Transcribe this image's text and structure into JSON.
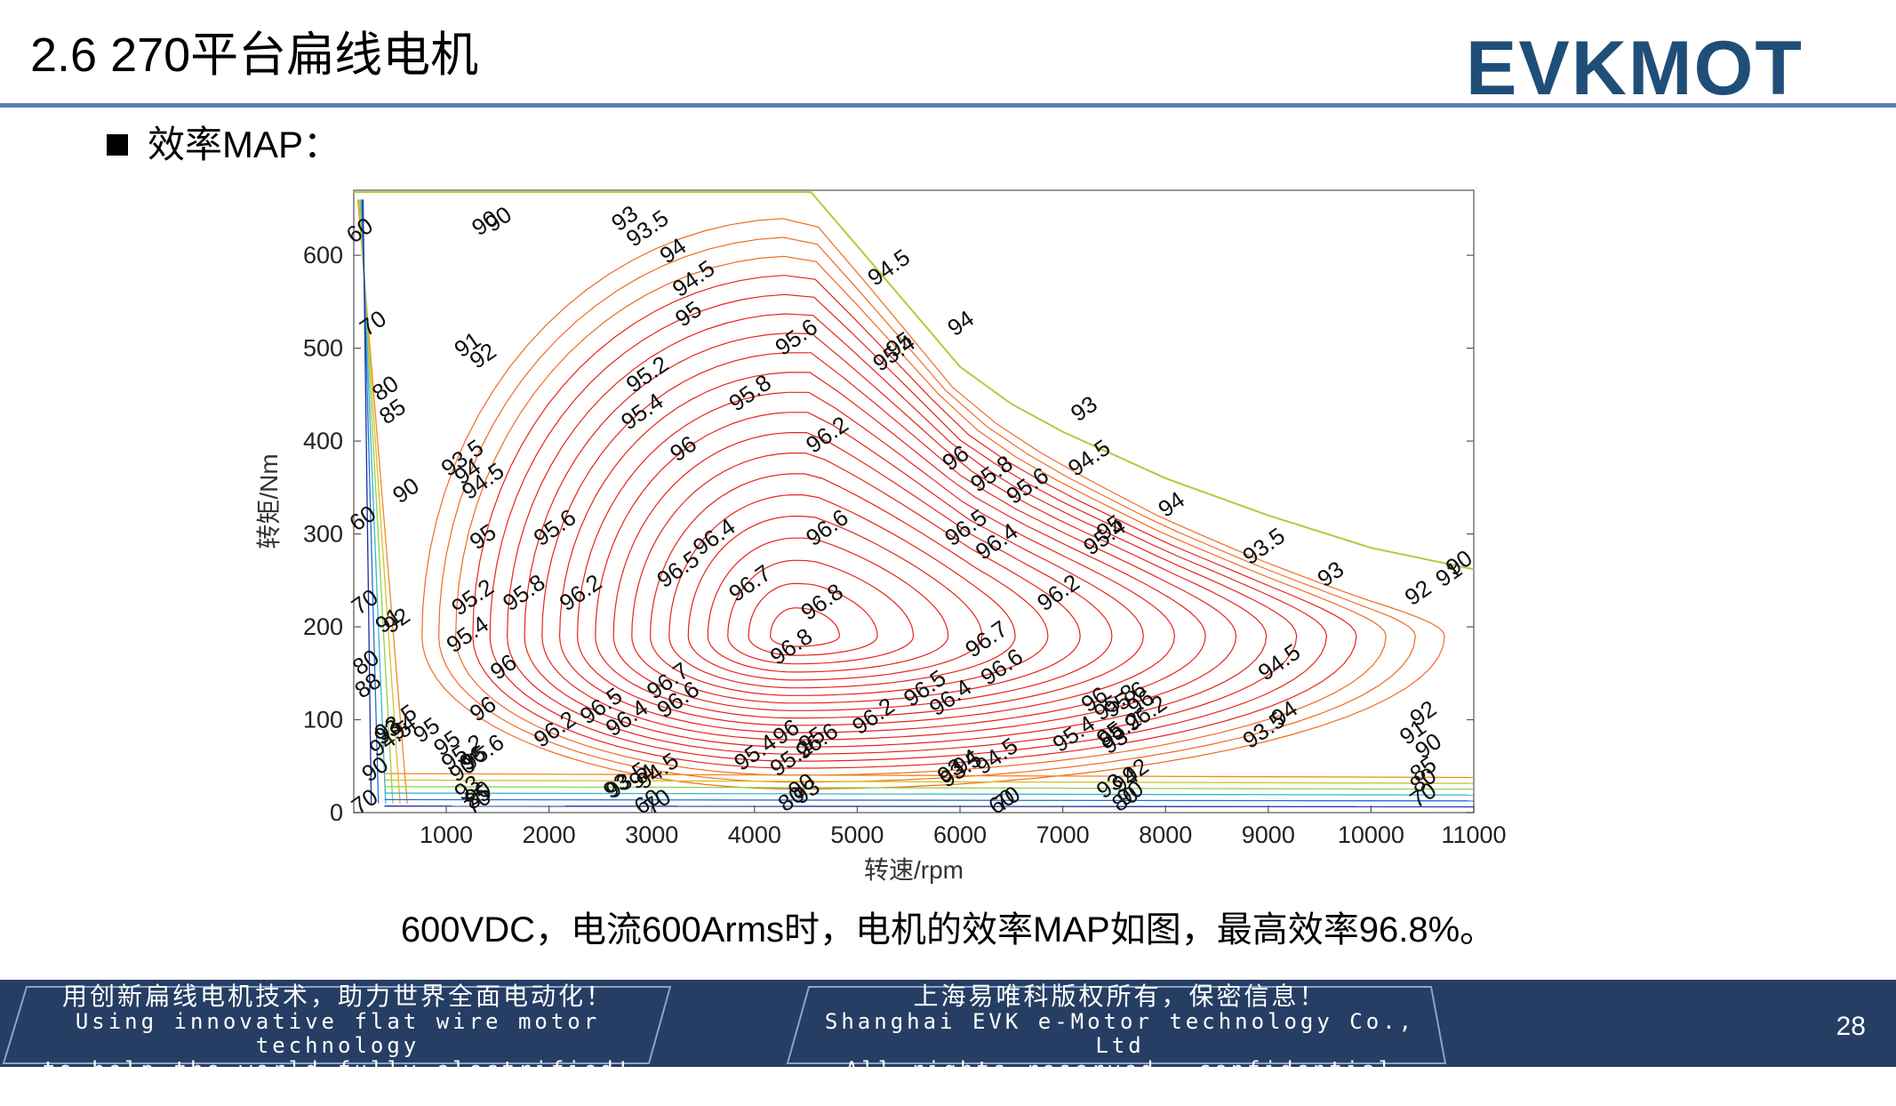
{
  "slide": {
    "title": "2.6 270平台扁线电机",
    "bullet": "效率MAP：",
    "caption": "600VDC，电流600Arms时，电机的效率MAP如图，最高效率96.8%。",
    "page_number": "28",
    "logo_text": "EVKMOT"
  },
  "footer": {
    "left_line1": "用创新扁线电机技术，助力世界全面电动化！",
    "left_line2": "Using innovative flat wire motor technology",
    "left_line3": "to help the world fully electrified!",
    "right_line1": "上海易唯科版权所有，保密信息！",
    "right_line2": "Shanghai EVK e-Motor technology Co., Ltd",
    "right_line3": "All rights reserved， confidential information!"
  },
  "colors": {
    "accent_rule": "#5b7fb3",
    "footer_bg": "#263e63",
    "logo_blue": "#1f4e79",
    "logo_green": "#2e8b57",
    "contour_high": "#e8231c",
    "contour_mid": "#f08a1e",
    "contour_low_green": "#8fd14f",
    "contour_low_blue": "#1f6fdc"
  },
  "chart_data": {
    "type": "contour",
    "xlabel": "转速/rpm",
    "ylabel": "转矩/Nm",
    "xlim": [
      100,
      11000
    ],
    "ylim": [
      0,
      670
    ],
    "x_ticks": [
      1000,
      2000,
      3000,
      4000,
      5000,
      6000,
      7000,
      8000,
      9000,
      10000,
      11000
    ],
    "y_ticks": [
      0,
      100,
      200,
      300,
      400,
      500,
      600
    ],
    "peak_efficiency": 96.8,
    "peak_location": {
      "speed_rpm": 4400,
      "torque_nm": 190
    },
    "envelope": [
      [
        100,
        668
      ],
      [
        4550,
        668
      ],
      [
        5000,
        610
      ],
      [
        5500,
        545
      ],
      [
        6000,
        480
      ],
      [
        6500,
        440
      ],
      [
        7000,
        410
      ],
      [
        8000,
        360
      ],
      [
        9000,
        320
      ],
      [
        10000,
        285
      ],
      [
        11000,
        262
      ]
    ],
    "contour_levels": [
      60,
      70,
      80,
      85,
      90,
      91,
      92,
      93,
      93.5,
      94,
      94.5,
      95,
      95.2,
      95.4,
      95.6,
      95.8,
      96,
      96.2,
      96.4,
      96.5,
      96.6,
      96.7,
      96.8
    ],
    "contour_labels": [
      {
        "text": "60",
        "x": 200,
        "y": 620
      },
      {
        "text": "70",
        "x": 330,
        "y": 520
      },
      {
        "text": "80",
        "x": 450,
        "y": 450
      },
      {
        "text": "85",
        "x": 520,
        "y": 425
      },
      {
        "text": "90",
        "x": 1420,
        "y": 628
      },
      {
        "text": "93",
        "x": 2780,
        "y": 633
      },
      {
        "text": "93.5",
        "x": 3000,
        "y": 622
      },
      {
        "text": "94",
        "x": 3250,
        "y": 598
      },
      {
        "text": "94.5",
        "x": 3450,
        "y": 568
      },
      {
        "text": "95",
        "x": 3400,
        "y": 530
      },
      {
        "text": "95.2",
        "x": 3000,
        "y": 465
      },
      {
        "text": "95.4",
        "x": 2950,
        "y": 425
      },
      {
        "text": "95.6",
        "x": 4450,
        "y": 505
      },
      {
        "text": "95.8",
        "x": 4000,
        "y": 445
      },
      {
        "text": "96",
        "x": 3350,
        "y": 385
      },
      {
        "text": "96.2",
        "x": 4750,
        "y": 400
      },
      {
        "text": "96.4",
        "x": 3650,
        "y": 290
      },
      {
        "text": "96.5",
        "x": 3300,
        "y": 255
      },
      {
        "text": "96.6",
        "x": 4750,
        "y": 300
      },
      {
        "text": "96.7",
        "x": 4000,
        "y": 240
      },
      {
        "text": "96.8",
        "x": 4700,
        "y": 220
      },
      {
        "text": "96.8",
        "x": 4400,
        "y": 172
      },
      {
        "text": "94.5",
        "x": 5350,
        "y": 580
      },
      {
        "text": "94",
        "x": 6050,
        "y": 520
      },
      {
        "text": "95",
        "x": 5450,
        "y": 497
      },
      {
        "text": "95.4",
        "x": 5400,
        "y": 488
      },
      {
        "text": "96",
        "x": 6000,
        "y": 375
      },
      {
        "text": "95.8",
        "x": 6350,
        "y": 358
      },
      {
        "text": "95.6",
        "x": 6700,
        "y": 345
      },
      {
        "text": "96.5",
        "x": 6100,
        "y": 300
      },
      {
        "text": "96.4",
        "x": 6400,
        "y": 285
      },
      {
        "text": "96.2",
        "x": 7000,
        "y": 230
      },
      {
        "text": "96.7",
        "x": 6300,
        "y": 180
      },
      {
        "text": "96.6",
        "x": 6450,
        "y": 150
      },
      {
        "text": "93",
        "x": 7250,
        "y": 428
      },
      {
        "text": "94.5",
        "x": 7300,
        "y": 375
      },
      {
        "text": "94",
        "x": 8100,
        "y": 325
      },
      {
        "text": "95",
        "x": 7500,
        "y": 300
      },
      {
        "text": "95.4",
        "x": 7450,
        "y": 290
      },
      {
        "text": "93.5",
        "x": 9000,
        "y": 280
      },
      {
        "text": "93",
        "x": 9650,
        "y": 250
      },
      {
        "text": "92",
        "x": 10500,
        "y": 230
      },
      {
        "text": "91",
        "x": 10800,
        "y": 250
      },
      {
        "text": "90",
        "x": 10900,
        "y": 262
      },
      {
        "text": "94.5",
        "x": 9150,
        "y": 155
      },
      {
        "text": "94",
        "x": 9200,
        "y": 100
      },
      {
        "text": "93.5",
        "x": 9000,
        "y": 82
      },
      {
        "text": "92",
        "x": 10550,
        "y": 100
      },
      {
        "text": "91",
        "x": 10450,
        "y": 80
      },
      {
        "text": "90",
        "x": 10600,
        "y": 65
      },
      {
        "text": "85",
        "x": 10550,
        "y": 40
      },
      {
        "text": "80",
        "x": 10550,
        "y": 28
      },
      {
        "text": "70",
        "x": 10550,
        "y": 12
      },
      {
        "text": "96.2",
        "x": 2100,
        "y": 83
      },
      {
        "text": "96.4",
        "x": 2800,
        "y": 95
      },
      {
        "text": "96.5",
        "x": 2550,
        "y": 108
      },
      {
        "text": "96.6",
        "x": 3300,
        "y": 115
      },
      {
        "text": "96.7",
        "x": 3200,
        "y": 135
      },
      {
        "text": "96.2",
        "x": 5200,
        "y": 97
      },
      {
        "text": "96.5",
        "x": 5700,
        "y": 127
      },
      {
        "text": "96.4",
        "x": 5950,
        "y": 117
      },
      {
        "text": "95.4",
        "x": 4050,
        "y": 58
      },
      {
        "text": "95.2",
        "x": 4400,
        "y": 52
      },
      {
        "text": "95",
        "x": 4600,
        "y": 72
      },
      {
        "text": "96",
        "x": 4350,
        "y": 80
      },
      {
        "text": "96.6",
        "x": 4650,
        "y": 70
      },
      {
        "text": "94.5",
        "x": 3100,
        "y": 38
      },
      {
        "text": "94",
        "x": 2950,
        "y": 32
      },
      {
        "text": "93.5",
        "x": 2800,
        "y": 28
      },
      {
        "text": "93",
        "x": 2700,
        "y": 22
      },
      {
        "text": "70",
        "x": 3100,
        "y": 5
      },
      {
        "text": "80",
        "x": 4400,
        "y": 8
      },
      {
        "text": "90",
        "x": 4500,
        "y": 22
      },
      {
        "text": "93",
        "x": 4550,
        "y": 16
      },
      {
        "text": "94.5",
        "x": 6400,
        "y": 54
      },
      {
        "text": "94",
        "x": 6100,
        "y": 48
      },
      {
        "text": "93",
        "x": 5950,
        "y": 38
      },
      {
        "text": "93.5",
        "x": 6050,
        "y": 40
      },
      {
        "text": "60",
        "x": 6450,
        "y": 5
      },
      {
        "text": "70",
        "x": 6500,
        "y": 8
      },
      {
        "text": "95.4",
        "x": 7150,
        "y": 78
      },
      {
        "text": "95.2",
        "x": 7600,
        "y": 82
      },
      {
        "text": "95",
        "x": 7500,
        "y": 78
      },
      {
        "text": "93",
        "x": 7550,
        "y": 70
      },
      {
        "text": "96",
        "x": 7350,
        "y": 115
      },
      {
        "text": "95.8",
        "x": 7550,
        "y": 112
      },
      {
        "text": "95.6",
        "x": 7650,
        "y": 115
      },
      {
        "text": "96",
        "x": 7800,
        "y": 112
      },
      {
        "text": "96.2",
        "x": 7850,
        "y": 100
      },
      {
        "text": "92",
        "x": 7750,
        "y": 38
      },
      {
        "text": "94",
        "x": 7650,
        "y": 28
      },
      {
        "text": "93",
        "x": 7500,
        "y": 22
      },
      {
        "text": "90",
        "x": 7700,
        "y": 14
      },
      {
        "text": "80",
        "x": 7650,
        "y": 8
      },
      {
        "text": "91",
        "x": 480,
        "y": 200
      },
      {
        "text": "92",
        "x": 560,
        "y": 200
      },
      {
        "text": "93.5",
        "x": 1200,
        "y": 375
      },
      {
        "text": "94",
        "x": 1250,
        "y": 360
      },
      {
        "text": "94.5",
        "x": 1400,
        "y": 350
      },
      {
        "text": "90",
        "x": 650,
        "y": 340
      },
      {
        "text": "95",
        "x": 1400,
        "y": 290
      },
      {
        "text": "95.6",
        "x": 2100,
        "y": 300
      },
      {
        "text": "95.8",
        "x": 1800,
        "y": 230
      },
      {
        "text": "96.2",
        "x": 2350,
        "y": 230
      },
      {
        "text": "95.2",
        "x": 1300,
        "y": 225
      },
      {
        "text": "95.4",
        "x": 1250,
        "y": 185
      },
      {
        "text": "96",
        "x": 1600,
        "y": 150
      },
      {
        "text": "96",
        "x": 1400,
        "y": 105
      },
      {
        "text": "95.6",
        "x": 1400,
        "y": 58
      },
      {
        "text": "93.5",
        "x": 550,
        "y": 90
      },
      {
        "text": "94",
        "x": 620,
        "y": 85
      },
      {
        "text": "95",
        "x": 850,
        "y": 82
      },
      {
        "text": "93",
        "x": 470,
        "y": 80
      },
      {
        "text": "94.5",
        "x": 500,
        "y": 73
      },
      {
        "text": "95",
        "x": 1050,
        "y": 68
      },
      {
        "text": "95.2",
        "x": 1200,
        "y": 58
      },
      {
        "text": "96",
        "x": 1300,
        "y": 52
      },
      {
        "text": "90",
        "x": 1200,
        "y": 40
      },
      {
        "text": "93",
        "x": 1250,
        "y": 20
      },
      {
        "text": "85",
        "x": 1350,
        "y": 10
      },
      {
        "text": "90",
        "x": 350,
        "y": 40
      },
      {
        "text": "88",
        "x": 280,
        "y": 130
      },
      {
        "text": "80",
        "x": 260,
        "y": 155
      },
      {
        "text": "70",
        "x": 250,
        "y": 220
      },
      {
        "text": "60",
        "x": 230,
        "y": 310
      },
      {
        "text": "90",
        "x": 1550,
        "y": 632
      },
      {
        "text": "91",
        "x": 1250,
        "y": 497
      },
      {
        "text": "92",
        "x": 1400,
        "y": 485
      },
      {
        "text": "70",
        "x": 250,
        "y": 5
      },
      {
        "text": "70",
        "x": 1350,
        "y": 5
      },
      {
        "text": "90",
        "x": 1350,
        "y": 14
      },
      {
        "text": "60",
        "x": 3000,
        "y": 5
      }
    ]
  }
}
